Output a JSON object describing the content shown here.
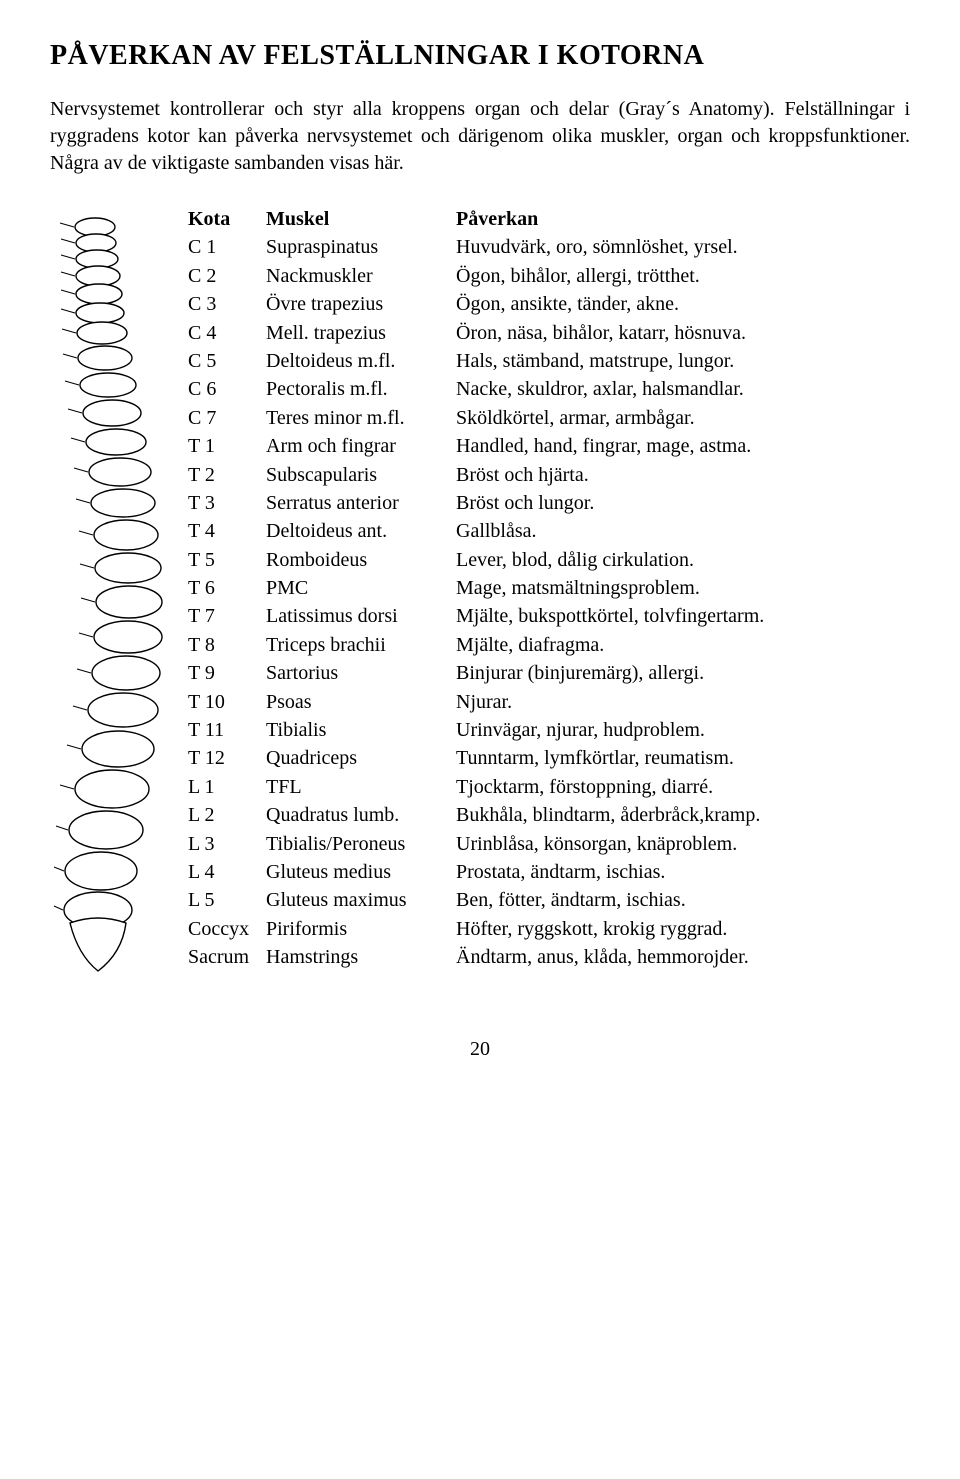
{
  "title": "PÅVERKAN AV FELSTÄLLNINGAR I KOTORNA",
  "intro": "Nervsystemet kontrollerar och styr alla kroppens organ och delar (Gray´s Anatomy). Felställningar i ryggradens kotor kan påverka nervsystemet och därigenom olika muskler, organ och kroppsfunktioner. Några av de viktigaste sambanden visas här.",
  "header": {
    "kota": "Kota",
    "muskel": "Muskel",
    "paverkan": "Påverkan"
  },
  "rows": [
    {
      "kota": "C 1",
      "muskel": "Supraspinatus",
      "paverkan": "Huvudvärk, oro, sömnlöshet, yrsel."
    },
    {
      "kota": "C 2",
      "muskel": "Nackmuskler",
      "paverkan": "Ögon, bihålor, allergi, trötthet."
    },
    {
      "kota": "C 3",
      "muskel": "Övre trapezius",
      "paverkan": "Ögon, ansikte, tänder, akne."
    },
    {
      "kota": "C 4",
      "muskel": "Mell. trapezius",
      "paverkan": "Öron, näsa, bihålor, katarr, hösnuva."
    },
    {
      "kota": "C 5",
      "muskel": "Deltoideus m.fl.",
      "paverkan": "Hals, stämband, matstrupe, lungor."
    },
    {
      "kota": "C 6",
      "muskel": "Pectoralis m.fl.",
      "paverkan": "Nacke, skuldror, axlar, halsmandlar."
    },
    {
      "kota": "C 7",
      "muskel": "Teres minor m.fl.",
      "paverkan": "Sköldkörtel, armar, armbågar."
    },
    {
      "kota": "T 1",
      "muskel": "Arm och fingrar",
      "paverkan": "Handled, hand, fingrar, mage, astma."
    },
    {
      "kota": "T 2",
      "muskel": "Subscapularis",
      "paverkan": "Bröst och hjärta."
    },
    {
      "kota": "T 3",
      "muskel": "Serratus anterior",
      "paverkan": "Bröst och lungor."
    },
    {
      "kota": "T 4",
      "muskel": "Deltoideus ant.",
      "paverkan": "Gallblåsa."
    },
    {
      "kota": "T 5",
      "muskel": "Romboideus",
      "paverkan": "Lever, blod, dålig cirkulation."
    },
    {
      "kota": "T 6",
      "muskel": "PMC",
      "paverkan": "Mage, matsmältningsproblem."
    },
    {
      "kota": "T 7",
      "muskel": "Latissimus dorsi",
      "paverkan": "Mjälte, bukspottkörtel, tolvfingertarm."
    },
    {
      "kota": "T 8",
      "muskel": "Triceps brachii",
      "paverkan": "Mjälte, diafragma."
    },
    {
      "kota": "T 9",
      "muskel": "Sartorius",
      "paverkan": "Binjurar (binjuremärg), allergi."
    },
    {
      "kota": "T 10",
      "muskel": "Psoas",
      "paverkan": "Njurar."
    },
    {
      "kota": "T 11",
      "muskel": "Tibialis",
      "paverkan": "Urinvägar, njurar, hudproblem."
    },
    {
      "kota": "T 12",
      "muskel": "Quadriceps",
      "paverkan": "Tunntarm, lymfkörtlar, reumatism."
    },
    {
      "kota": "L 1",
      "muskel": "TFL",
      "paverkan": "Tjocktarm, förstoppning, diarré."
    },
    {
      "kota": "L 2",
      "muskel": "Quadratus lumb.",
      "paverkan": "Bukhåla, blindtarm, åderbråck,kramp."
    },
    {
      "kota": "L 3",
      "muskel": "Tibialis/Peroneus",
      "paverkan": "Urinblåsa, könsorgan, knäproblem."
    },
    {
      "kota": "L 4",
      "muskel": "Gluteus medius",
      "paverkan": "Prostata, ändtarm, ischias."
    },
    {
      "kota": "L 5",
      "muskel": "Gluteus maximus",
      "paverkan": "Ben, fötter, ändtarm, ischias."
    },
    {
      "kota": "Coccyx",
      "muskel": "Piriformis",
      "paverkan": "Höfter, ryggskott, krokig ryggrad."
    },
    {
      "kota": "Sacrum",
      "muskel": "Hamstrings",
      "paverkan": "Ändtarm, anus, klåda, hemmorojder."
    }
  ],
  "page_number": "20",
  "colors": {
    "text": "#000000",
    "background": "#ffffff",
    "stroke": "#000000",
    "fill": "#ffffff"
  },
  "fonts": {
    "title_size_pt": 21,
    "body_size_pt": 15,
    "family": "Times New Roman, serif"
  }
}
